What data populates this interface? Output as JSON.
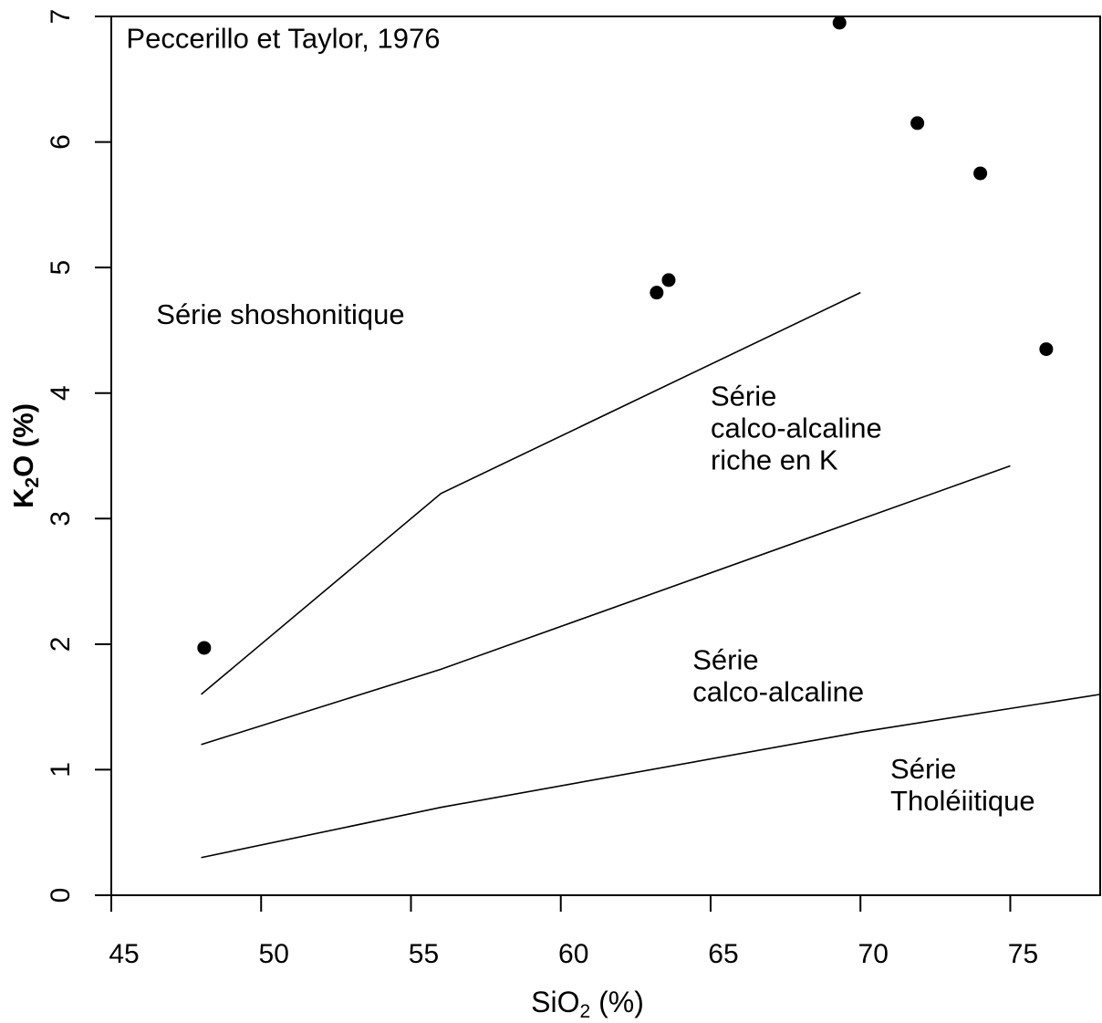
{
  "chart_data": {
    "type": "scatter",
    "title": "",
    "reference": "Peccerillo et Taylor, 1976",
    "xlabel": {
      "main": "SiO",
      "sub": "2",
      "unit": " (%)"
    },
    "ylabel": {
      "main": "K",
      "sub": "2",
      "rest": "O (%)"
    },
    "xlim": [
      45,
      78
    ],
    "ylim": [
      0,
      7
    ],
    "x_ticks": [
      45,
      50,
      55,
      60,
      65,
      70,
      75
    ],
    "y_ticks": [
      0,
      1,
      2,
      3,
      4,
      5,
      6,
      7
    ],
    "grid": false,
    "series": [
      {
        "type": "scatter",
        "x": [
          48.1,
          63.2,
          63.6,
          69.3,
          71.9,
          74.0,
          76.2
        ],
        "y": [
          1.97,
          4.8,
          4.9,
          6.95,
          6.15,
          5.75,
          4.35
        ]
      }
    ],
    "boundaries": [
      {
        "x": [
          48,
          56,
          70
        ],
        "y": [
          1.6,
          3.2,
          4.8
        ]
      },
      {
        "x": [
          48,
          56,
          75
        ],
        "y": [
          1.2,
          1.8,
          3.42
        ]
      },
      {
        "x": [
          48,
          56,
          70,
          78
        ],
        "y": [
          0.3,
          0.7,
          1.3,
          1.6
        ]
      }
    ],
    "regions": [
      {
        "lines": [
          "Série shoshonitique"
        ],
        "x": 46.5,
        "y": 4.55
      },
      {
        "lines": [
          "Série",
          "calco-alcaline",
          "riche en K"
        ],
        "x": 65.0,
        "y": 3.9
      },
      {
        "lines": [
          "Série",
          "calco-alcaline"
        ],
        "x": 64.4,
        "y": 1.8
      },
      {
        "lines": [
          "Série",
          "Tholéiitique"
        ],
        "x": 71.0,
        "y": 0.93
      }
    ],
    "reference_position": {
      "x": 45.5,
      "y": 6.75
    }
  }
}
